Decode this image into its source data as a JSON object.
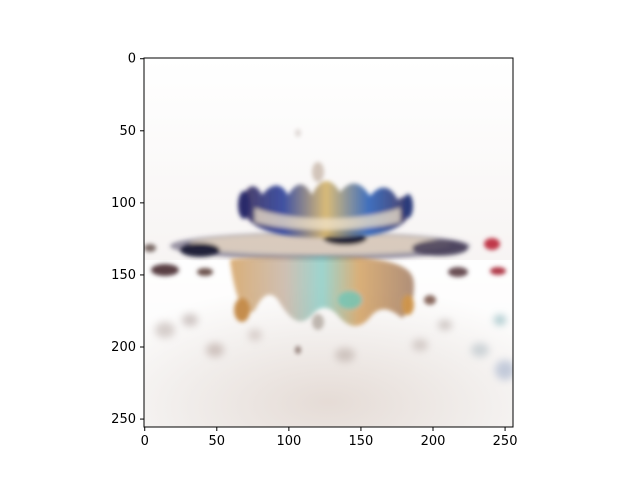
{
  "figure": {
    "background": "#ffffff",
    "image_kind": "photograph of a liquid droplet splash crown with colorful reflection",
    "axes": {
      "x": {
        "ticks": [
          0,
          50,
          100,
          150,
          200,
          250
        ],
        "range": [
          0,
          255
        ]
      },
      "y": {
        "ticks": [
          0,
          50,
          100,
          150,
          200,
          250
        ],
        "range": [
          0,
          255
        ],
        "inverted": true
      }
    },
    "colors": {
      "frame": "#000000",
      "splash_blue": "#2a3f9a",
      "splash_dark": "#2b2336",
      "splash_amber": "#c98a3a",
      "splash_red": "#c0394a",
      "background_haze": "#e8e2df"
    }
  }
}
